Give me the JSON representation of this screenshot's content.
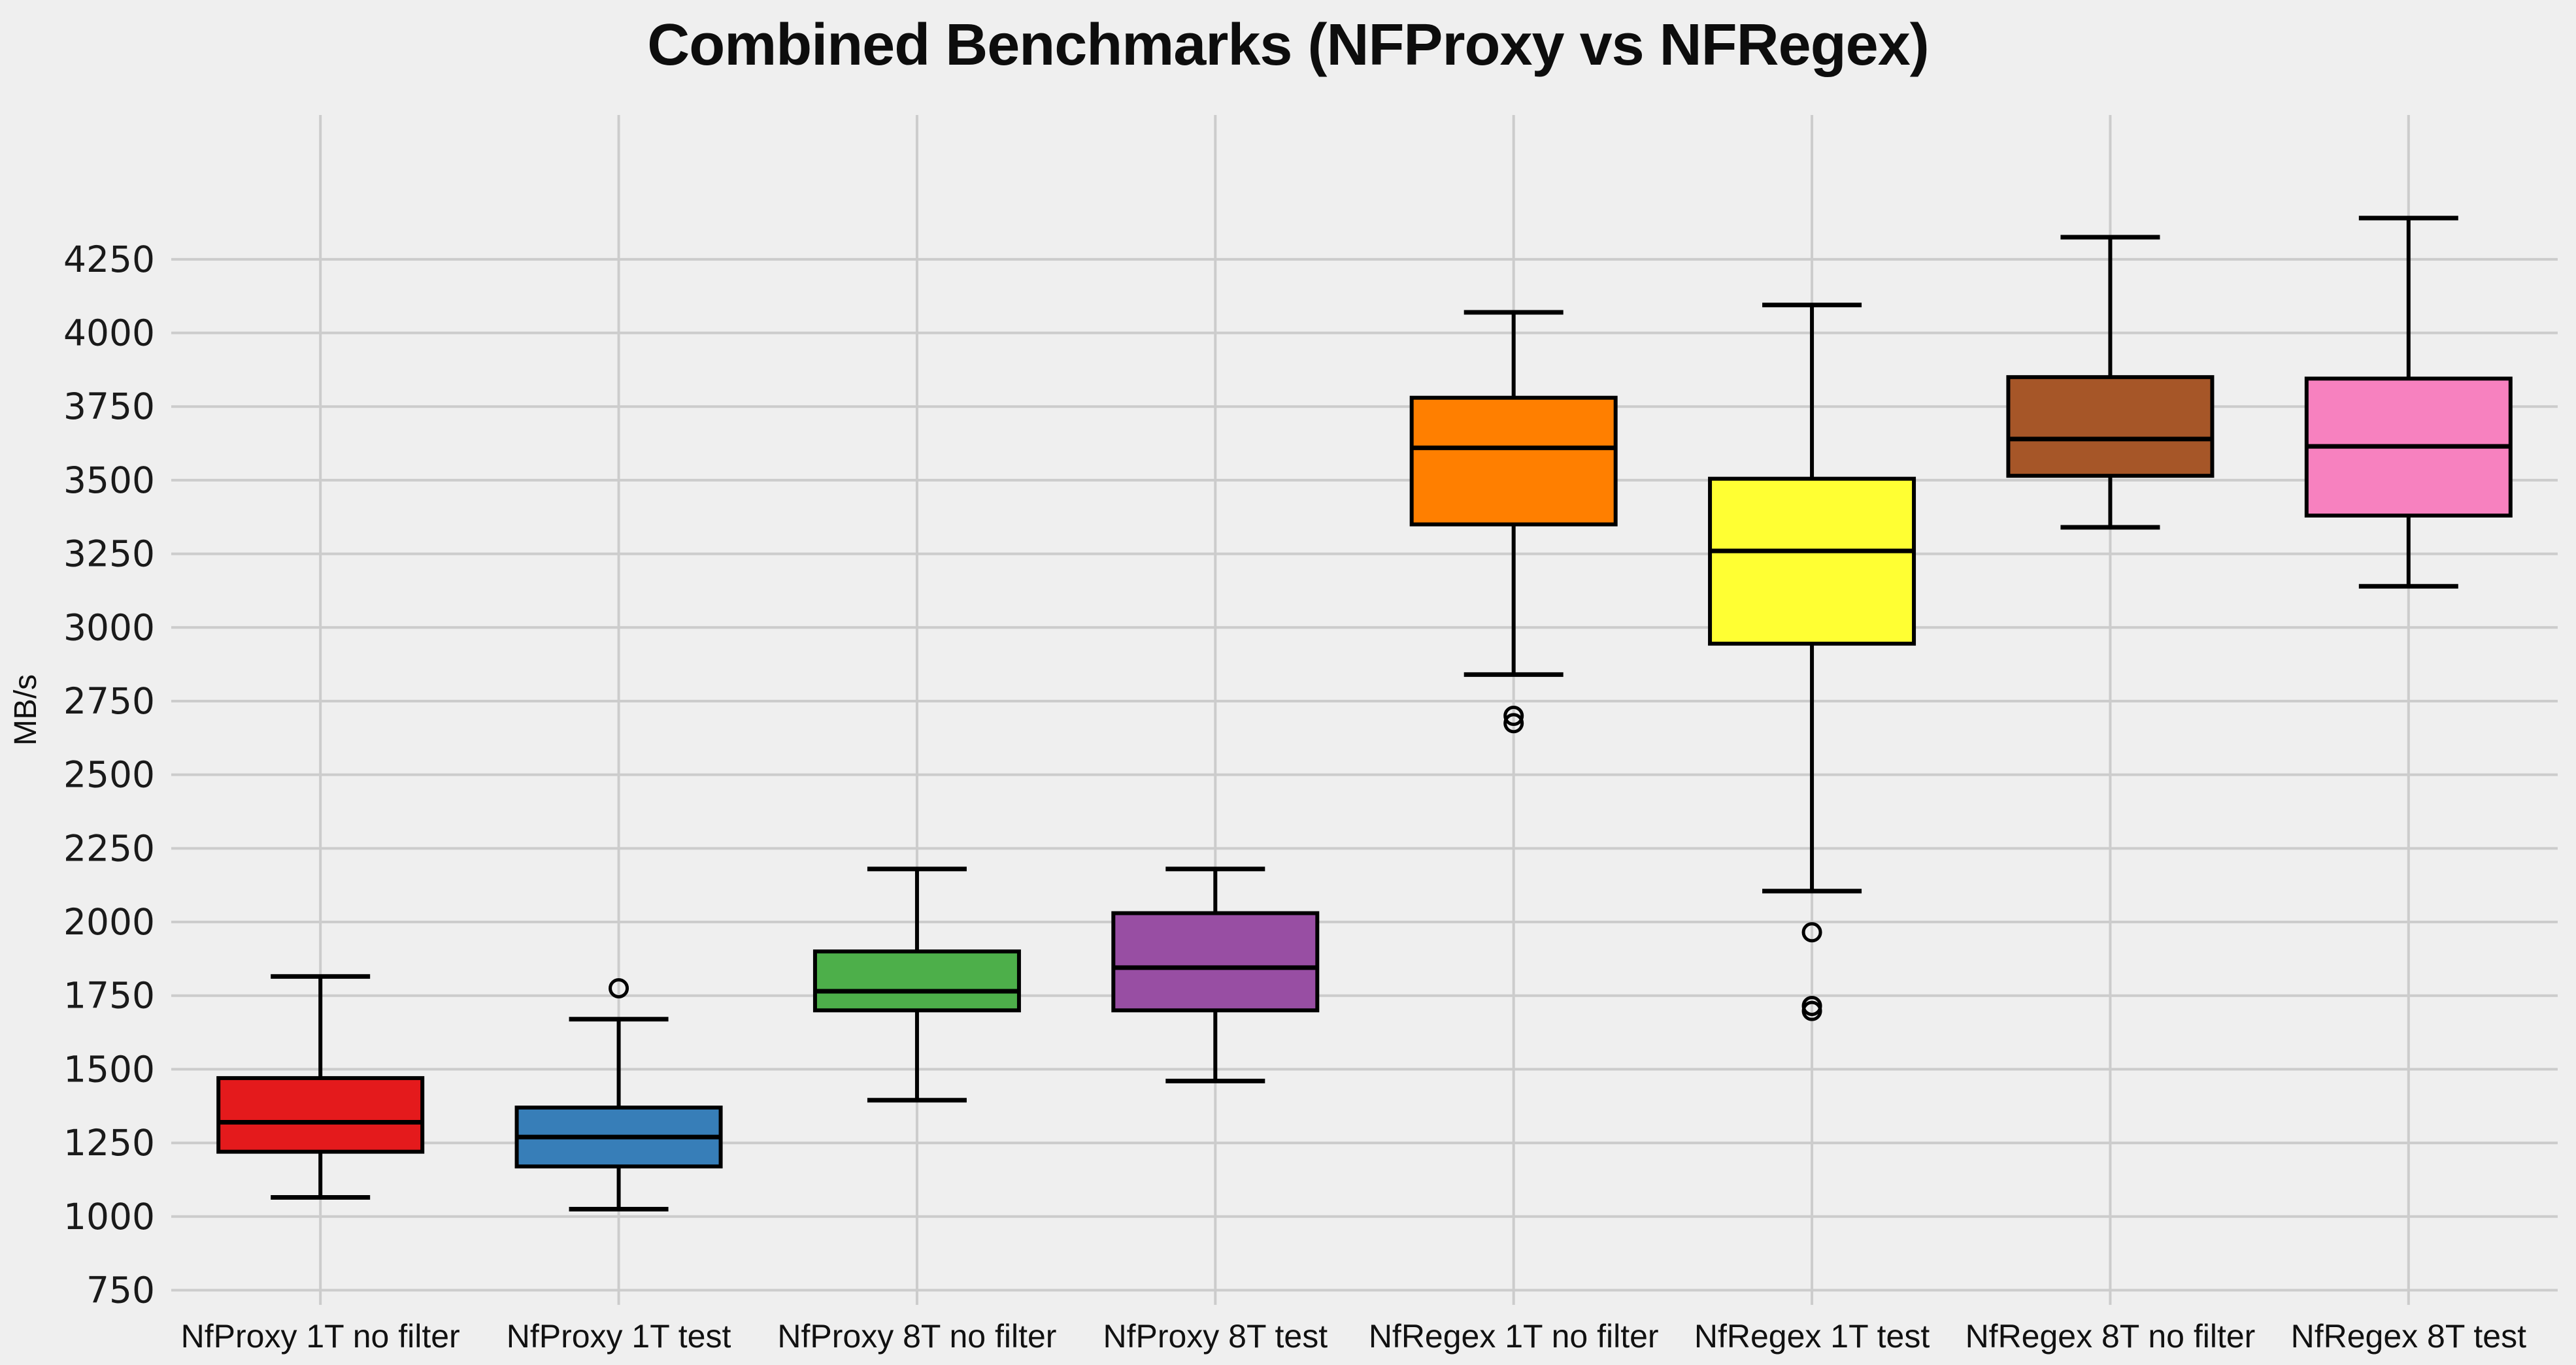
{
  "title": "Combined Benchmarks (NFProxy vs NFRegex)",
  "colors": {
    "background": "#efefef",
    "gridline": "#cccccc",
    "box_edge": "#000000",
    "text": "#111111"
  },
  "chart_data": {
    "type": "boxplot",
    "title": "Combined Benchmarks (NFProxy vs NFRegex)",
    "xlabel": "",
    "ylabel": "MB/s",
    "ylim": [
      700,
      4740
    ],
    "grid": true,
    "ytick_labels": [
      750,
      1000,
      1250,
      1500,
      1750,
      2000,
      2250,
      2500,
      2750,
      3000,
      3250,
      3500,
      3750,
      4000,
      4250
    ],
    "categories": [
      "NfProxy 1T no filter",
      "NfProxy 1T test",
      "NfProxy 8T no filter",
      "NfProxy 8T test",
      "NfRegex 1T no filter",
      "NfRegex 1T test",
      "NfRegex 8T no filter",
      "NfRegex 8T test"
    ],
    "series": [
      {
        "name": "NfProxy 1T no filter",
        "color": "#e41a1c",
        "whisker_low": 1065,
        "q1": 1220,
        "median": 1320,
        "q3": 1470,
        "whisker_high": 1815,
        "outliers": []
      },
      {
        "name": "NfProxy 1T test",
        "color": "#377eb8",
        "whisker_low": 1025,
        "q1": 1170,
        "median": 1270,
        "q3": 1370,
        "whisker_high": 1670,
        "outliers": [
          1775
        ]
      },
      {
        "name": "NfProxy 8T no filter",
        "color": "#4daf4a",
        "whisker_low": 1395,
        "q1": 1700,
        "median": 1765,
        "q3": 1900,
        "whisker_high": 2180,
        "outliers": []
      },
      {
        "name": "NfProxy 8T test",
        "color": "#984ea3",
        "whisker_low": 1460,
        "q1": 1700,
        "median": 1845,
        "q3": 2030,
        "whisker_high": 2180,
        "outliers": []
      },
      {
        "name": "NfRegex 1T no filter",
        "color": "#ff7f00",
        "whisker_low": 2840,
        "q1": 3350,
        "median": 3610,
        "q3": 3780,
        "whisker_high": 4070,
        "outliers": [
          2700,
          2675
        ]
      },
      {
        "name": "NfRegex 1T test",
        "color": "#ffff33",
        "whisker_low": 2105,
        "q1": 2945,
        "median": 3260,
        "q3": 3505,
        "whisker_high": 4095,
        "outliers": [
          1965,
          1715,
          1698
        ]
      },
      {
        "name": "NfRegex 8T no filter",
        "color": "#a65628",
        "whisker_low": 3340,
        "q1": 3515,
        "median": 3640,
        "q3": 3850,
        "whisker_high": 4325,
        "outliers": []
      },
      {
        "name": "NfRegex 8T test",
        "color": "#f781bf",
        "whisker_low": 3140,
        "q1": 3380,
        "median": 3615,
        "q3": 3845,
        "whisker_high": 4390,
        "outliers": []
      }
    ]
  }
}
